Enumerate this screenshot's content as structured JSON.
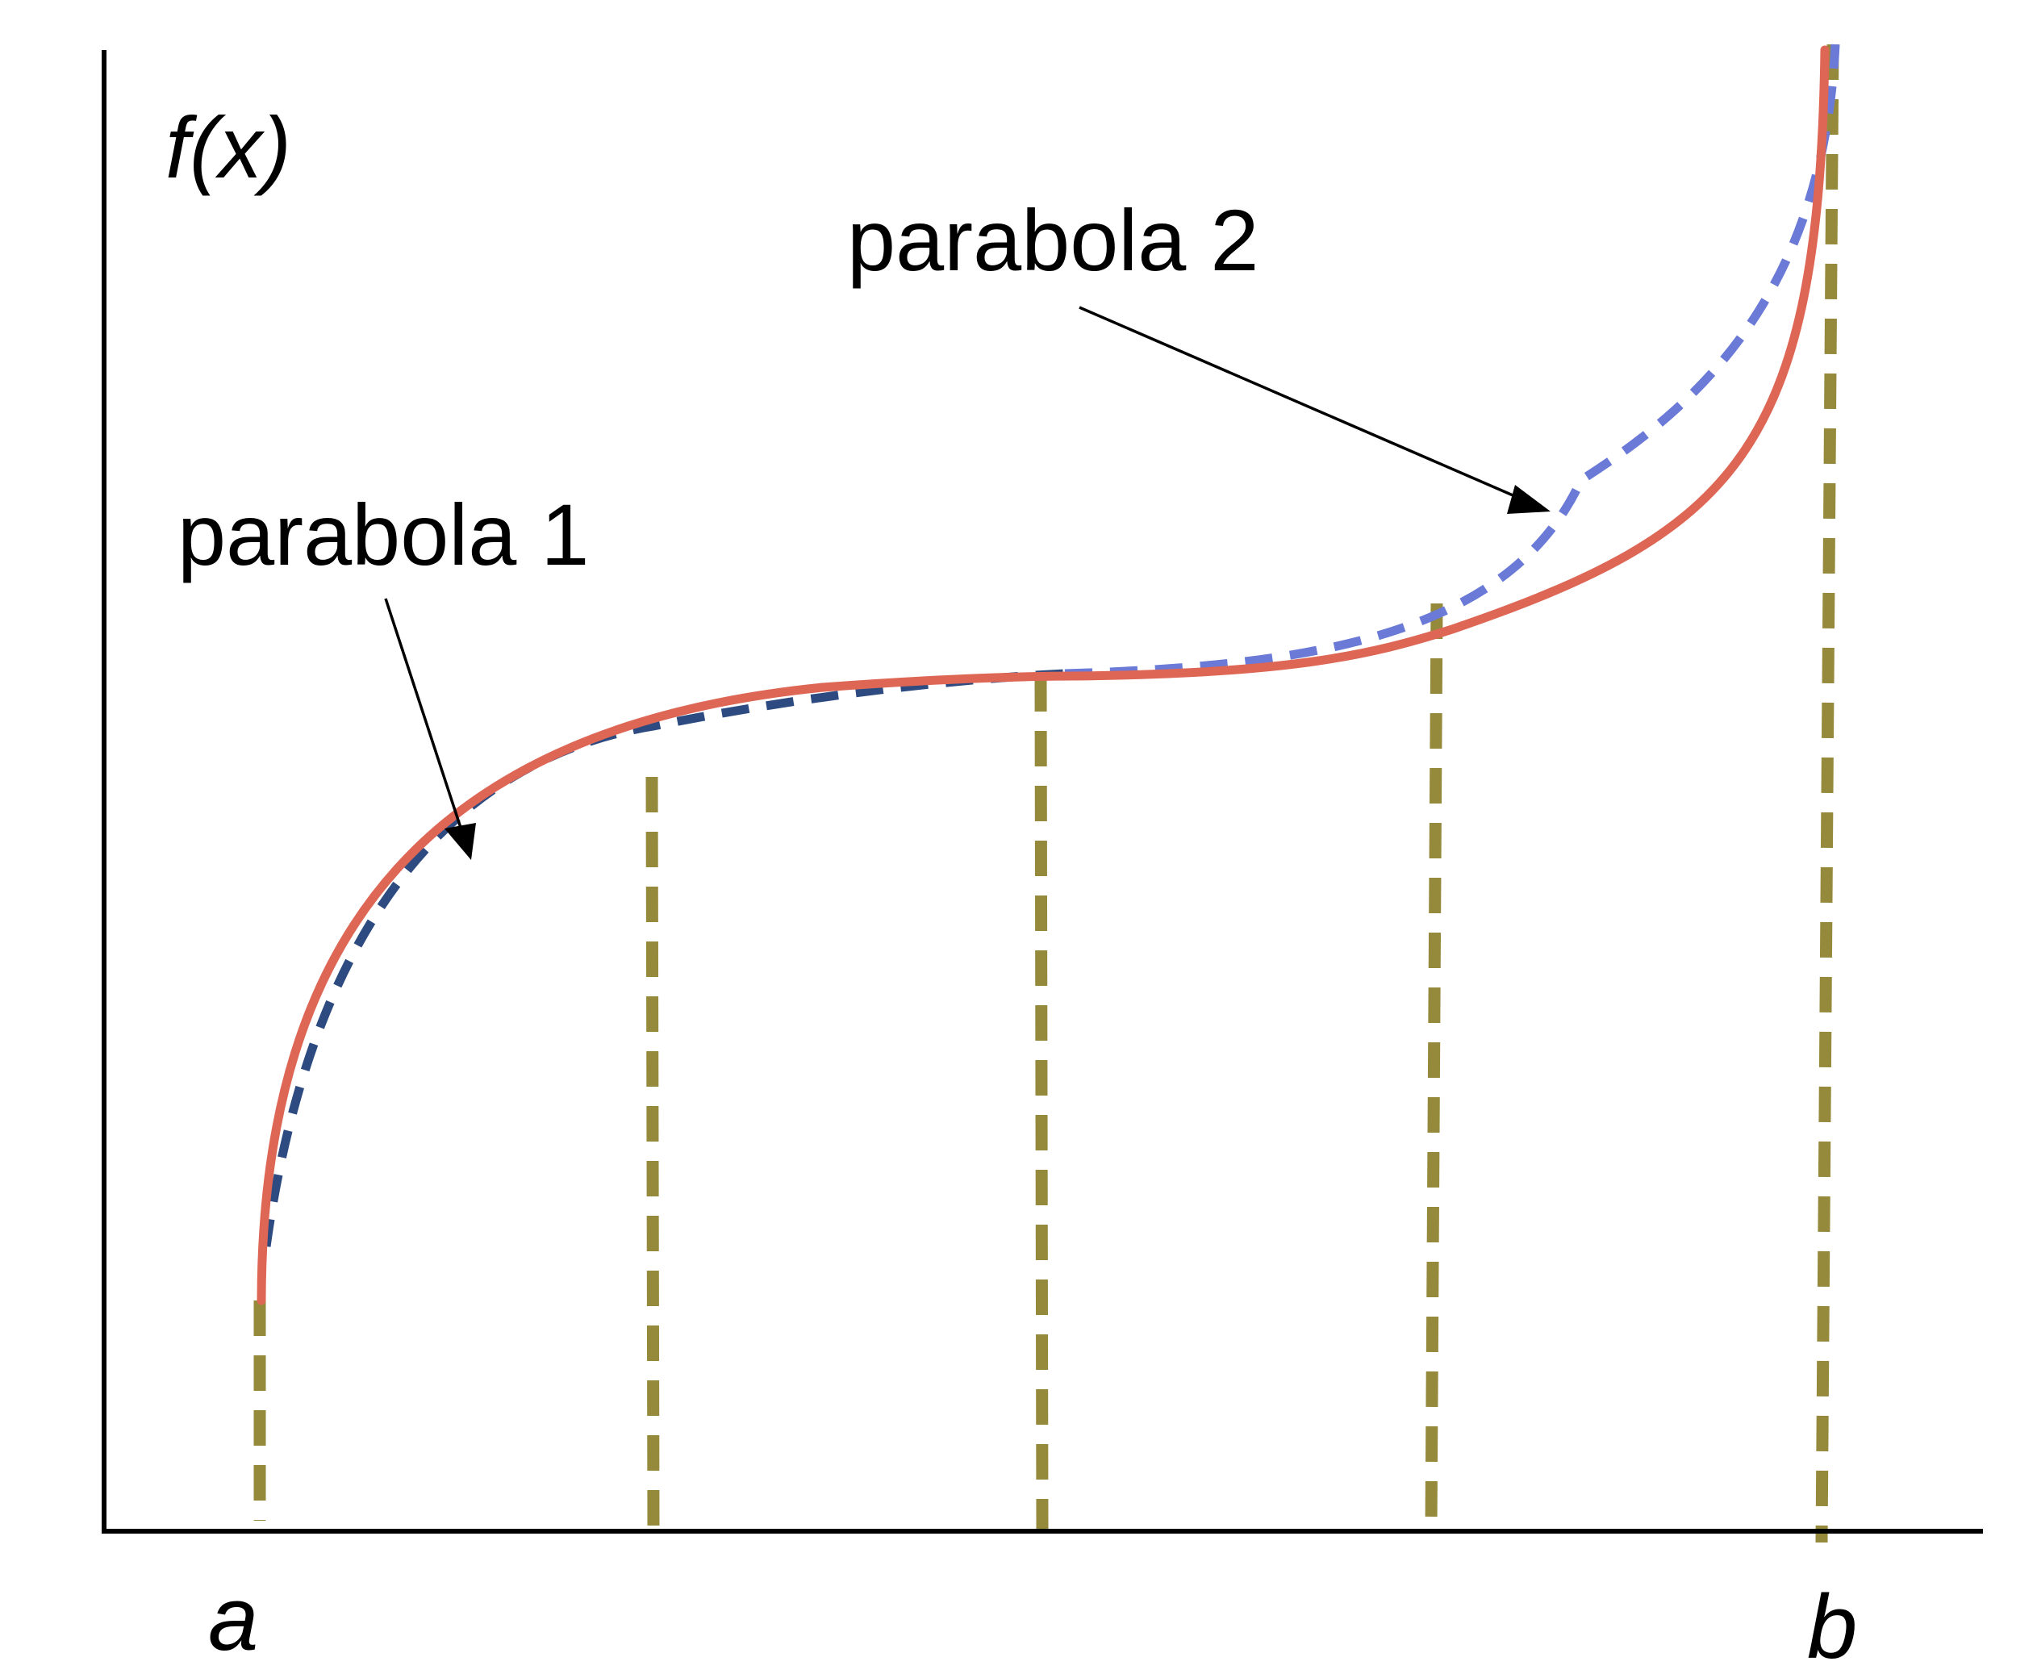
{
  "labels": {
    "y_axis": "f(x)",
    "x_start": "a",
    "x_end": "b",
    "parabola_1": "parabola 1",
    "parabola_2": "parabola 2"
  },
  "colors": {
    "axis": "#000000",
    "function_curve": "#dd6655",
    "parabola_1": "#2d4b80",
    "parabola_2": "#6a7ad6",
    "guide_lines": "#958a3c"
  },
  "partition_points": 5
}
